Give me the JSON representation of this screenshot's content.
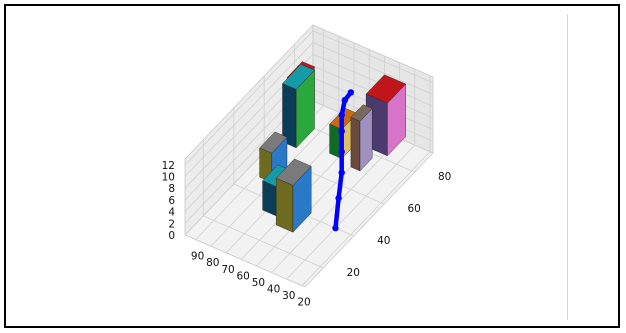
{
  "chart_data": {
    "type": "bar3d",
    "title": "",
    "xlabel": "",
    "ylabel": "",
    "zlabel": "",
    "grid": true,
    "x_ticks": [
      20,
      30,
      40,
      50,
      60,
      70,
      80,
      90
    ],
    "y_ticks": [
      20,
      40,
      60,
      80
    ],
    "z_ticks": [
      0,
      2,
      4,
      6,
      8,
      10,
      12
    ],
    "xlim": [
      18,
      97
    ],
    "ylim": [
      8,
      92
    ],
    "zlim": [
      0,
      13
    ],
    "bars": [
      {
        "x": 92,
        "y": 78,
        "dx": 8,
        "dy": 10,
        "z": 0,
        "dz": 7.5,
        "top": "#c0161b",
        "front": "#4a3a6e",
        "side": "#b53a8a"
      },
      {
        "x": 84,
        "y": 68,
        "dx": 9,
        "dy": 12,
        "z": 0,
        "dz": 10,
        "top": "#159aa8",
        "front": "#0b3c58",
        "side": "#2aa83c"
      },
      {
        "x": 38,
        "y": 82,
        "dx": 14,
        "dy": 12,
        "z": 0,
        "dz": 9,
        "top": "#c0161b",
        "front": "#4a3a6e",
        "side": "#d874c8"
      },
      {
        "x": 44,
        "y": 70,
        "dx": 6,
        "dy": 8,
        "z": 0,
        "dz": 8.5,
        "top": "#7a6a5e",
        "front": "#6a4a3a",
        "side": "#a090c0"
      },
      {
        "x": 58,
        "y": 72,
        "dx": 8,
        "dy": 10,
        "z": 0,
        "dz": 5,
        "top": "#c86a10",
        "front": "#106a28",
        "side": "#e0c060"
      },
      {
        "x": 80,
        "y": 48,
        "dx": 8,
        "dy": 10,
        "z": 0,
        "dz": 5,
        "top": "#7a7a7a",
        "front": "#6e6a20",
        "side": "#2a78c8"
      },
      {
        "x": 62,
        "y": 34,
        "dx": 10,
        "dy": 10,
        "z": 0,
        "dz": 5,
        "top": "#159aa8",
        "front": "#0b3c58",
        "side": "#2a78c8"
      },
      {
        "x": 48,
        "y": 30,
        "dx": 11,
        "dy": 12,
        "z": 0,
        "dz": 8,
        "top": "#7a7a7a",
        "front": "#6e6a20",
        "side": "#2a78c8"
      }
    ],
    "line": {
      "color": "#0000ff",
      "points": [
        {
          "x": 30,
          "y": 40,
          "z": 0
        },
        {
          "x": 38,
          "y": 50,
          "z": 1.5
        },
        {
          "x": 44,
          "y": 58,
          "z": 3
        },
        {
          "x": 48,
          "y": 62,
          "z": 5
        },
        {
          "x": 52,
          "y": 66,
          "z": 7
        },
        {
          "x": 54,
          "y": 68,
          "z": 9
        },
        {
          "x": 54,
          "y": 70,
          "z": 11
        },
        {
          "x": 52,
          "y": 72,
          "z": 12
        }
      ]
    }
  }
}
